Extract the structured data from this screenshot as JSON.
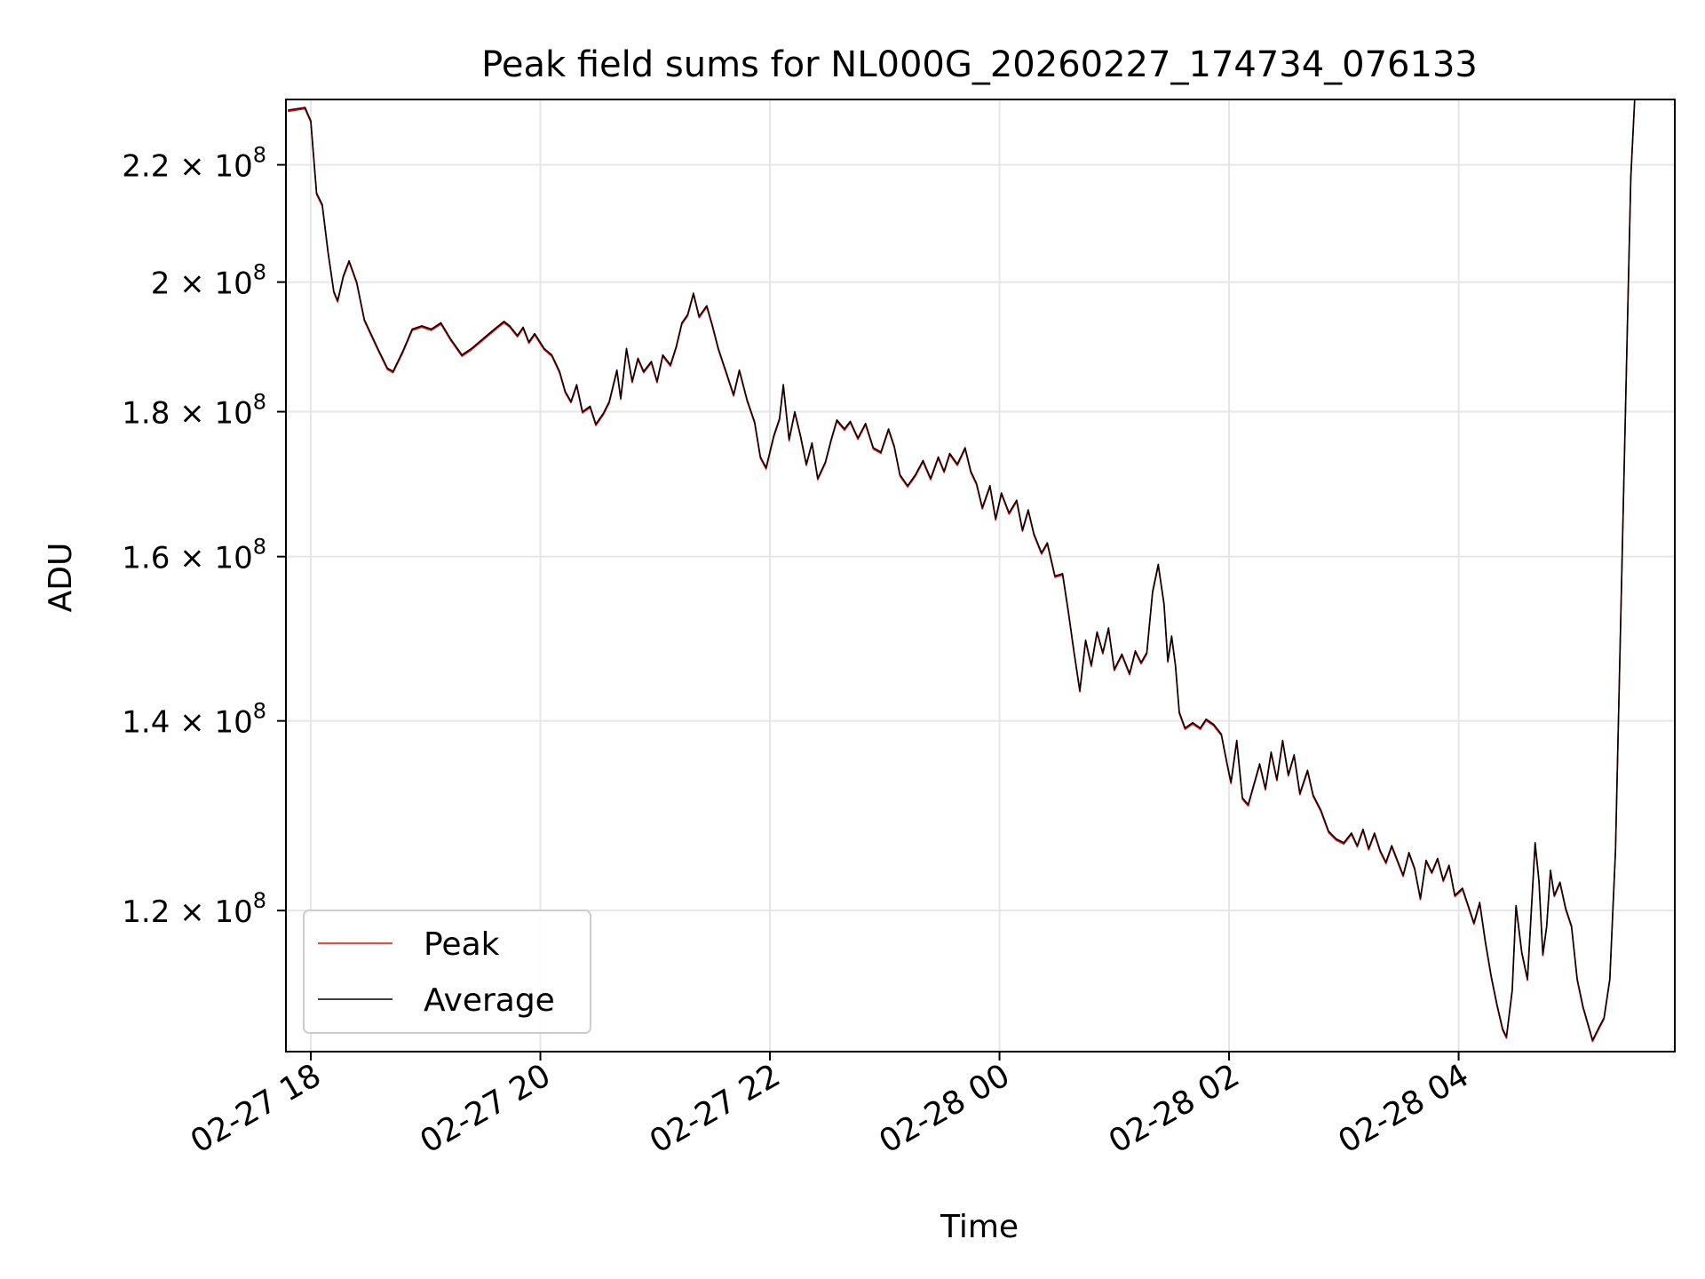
{
  "chart_data": {
    "type": "line",
    "title": "Peak field sums for NL000G_20260227_174734_076133",
    "xlabel": "Time",
    "ylabel": "ADU",
    "yscale": "log",
    "ylim": [
      107000000,
      232000000
    ],
    "xlim": [
      "2026-02-27 17:47",
      "2026-02-28 05:53"
    ],
    "x_ticks": [
      {
        "t": "2026-02-27 18:00",
        "label": "02-27 18"
      },
      {
        "t": "2026-02-27 20:00",
        "label": "02-27 20"
      },
      {
        "t": "2026-02-27 22:00",
        "label": "02-27 22"
      },
      {
        "t": "2026-02-28 00:00",
        "label": "02-28 00"
      },
      {
        "t": "2026-02-28 02:00",
        "label": "02-28 02"
      },
      {
        "t": "2026-02-28 04:00",
        "label": "02-28 04"
      }
    ],
    "y_ticks": [
      {
        "v": 120000000,
        "mantissa": "1.2",
        "exp": "8"
      },
      {
        "v": 140000000,
        "mantissa": "1.4",
        "exp": "8"
      },
      {
        "v": 160000000,
        "mantissa": "1.6",
        "exp": "8"
      },
      {
        "v": 180000000,
        "mantissa": "1.8",
        "exp": "8"
      },
      {
        "v": 200000000,
        "mantissa": "2",
        "exp": "8"
      },
      {
        "v": 220000000,
        "mantissa": "2.2",
        "exp": "8"
      }
    ],
    "grid": true,
    "legend_position": "bottom-left",
    "series": [
      {
        "name": "Peak",
        "color": "#ff0000"
      },
      {
        "name": "Average",
        "color": "#000000"
      }
    ],
    "points": [
      [
        "2026-02-27 17:48",
        230000000
      ],
      [
        "2026-02-27 17:57",
        230500000
      ],
      [
        "2026-02-27 18:00",
        228000000
      ],
      [
        "2026-02-27 18:03",
        215000000
      ],
      [
        "2026-02-27 18:06",
        213000000
      ],
      [
        "2026-02-27 18:09",
        205000000
      ],
      [
        "2026-02-27 18:12",
        198500000
      ],
      [
        "2026-02-27 18:14",
        197000000
      ],
      [
        "2026-02-27 18:17",
        201000000
      ],
      [
        "2026-02-27 18:20",
        203500000
      ],
      [
        "2026-02-27 18:24",
        200000000
      ],
      [
        "2026-02-27 18:28",
        194000000
      ],
      [
        "2026-02-27 18:35",
        189500000
      ],
      [
        "2026-02-27 18:40",
        186500000
      ],
      [
        "2026-02-27 18:43",
        186000000
      ],
      [
        "2026-02-27 18:48",
        189000000
      ],
      [
        "2026-02-27 18:53",
        192500000
      ],
      [
        "2026-02-27 18:58",
        193000000
      ],
      [
        "2026-02-27 19:03",
        192500000
      ],
      [
        "2026-02-27 19:08",
        193500000
      ],
      [
        "2026-02-27 19:13",
        191000000
      ],
      [
        "2026-02-27 19:19",
        188500000
      ],
      [
        "2026-02-27 19:24",
        189500000
      ],
      [
        "2026-02-27 19:30",
        191000000
      ],
      [
        "2026-02-27 19:36",
        192500000
      ],
      [
        "2026-02-27 19:41",
        193700000
      ],
      [
        "2026-02-27 19:44",
        193000000
      ],
      [
        "2026-02-27 19:48",
        191500000
      ],
      [
        "2026-02-27 19:51",
        192800000
      ],
      [
        "2026-02-27 19:54",
        190500000
      ],
      [
        "2026-02-27 19:57",
        191800000
      ],
      [
        "2026-02-27 20:02",
        189500000
      ],
      [
        "2026-02-27 20:06",
        188500000
      ],
      [
        "2026-02-27 20:10",
        186000000
      ],
      [
        "2026-02-27 20:13",
        183000000
      ],
      [
        "2026-02-27 20:16",
        181500000
      ],
      [
        "2026-02-27 20:19",
        184000000
      ],
      [
        "2026-02-27 20:22",
        180000000
      ],
      [
        "2026-02-27 20:26",
        180800000
      ],
      [
        "2026-02-27 20:29",
        178200000
      ],
      [
        "2026-02-27 20:33",
        179800000
      ],
      [
        "2026-02-27 20:36",
        181500000
      ],
      [
        "2026-02-27 20:40",
        186200000
      ],
      [
        "2026-02-27 20:42",
        182000000
      ],
      [
        "2026-02-27 20:45",
        189500000
      ],
      [
        "2026-02-27 20:48",
        184500000
      ],
      [
        "2026-02-27 20:51",
        188000000
      ],
      [
        "2026-02-27 20:54",
        186000000
      ],
      [
        "2026-02-27 20:58",
        187500000
      ],
      [
        "2026-02-27 21:01",
        184500000
      ],
      [
        "2026-02-27 21:04",
        188500000
      ],
      [
        "2026-02-27 21:08",
        187000000
      ],
      [
        "2026-02-27 21:11",
        189800000
      ],
      [
        "2026-02-27 21:14",
        193500000
      ],
      [
        "2026-02-27 21:17",
        194800000
      ],
      [
        "2026-02-27 21:20",
        198200000
      ],
      [
        "2026-02-27 21:23",
        194500000
      ],
      [
        "2026-02-27 21:27",
        196200000
      ],
      [
        "2026-02-27 21:30",
        193000000
      ],
      [
        "2026-02-27 21:33",
        189500000
      ],
      [
        "2026-02-27 21:37",
        186000000
      ],
      [
        "2026-02-27 21:41",
        182500000
      ],
      [
        "2026-02-27 21:44",
        186200000
      ],
      [
        "2026-02-27 21:48",
        181800000
      ],
      [
        "2026-02-27 21:52",
        178500000
      ],
      [
        "2026-02-27 21:55",
        173500000
      ],
      [
        "2026-02-27 21:58",
        172000000
      ],
      [
        "2026-02-27 22:02",
        176500000
      ],
      [
        "2026-02-27 22:05",
        179000000
      ],
      [
        "2026-02-27 22:07",
        184000000
      ],
      [
        "2026-02-27 22:10",
        176000000
      ],
      [
        "2026-02-27 22:13",
        180000000
      ],
      [
        "2026-02-27 22:16",
        176500000
      ],
      [
        "2026-02-27 22:19",
        172500000
      ],
      [
        "2026-02-27 22:22",
        175500000
      ],
      [
        "2026-02-27 22:25",
        170500000
      ],
      [
        "2026-02-27 22:29",
        172800000
      ],
      [
        "2026-02-27 22:32",
        176000000
      ],
      [
        "2026-02-27 22:35",
        178800000
      ],
      [
        "2026-02-27 22:39",
        177500000
      ],
      [
        "2026-02-27 22:42",
        178600000
      ],
      [
        "2026-02-27 22:46",
        176200000
      ],
      [
        "2026-02-27 22:50",
        178300000
      ],
      [
        "2026-02-27 22:54",
        174800000
      ],
      [
        "2026-02-27 22:58",
        174200000
      ],
      [
        "2026-02-27 23:02",
        177500000
      ],
      [
        "2026-02-27 23:05",
        175000000
      ],
      [
        "2026-02-27 23:08",
        171000000
      ],
      [
        "2026-02-27 23:12",
        169500000
      ],
      [
        "2026-02-27 23:16",
        171000000
      ],
      [
        "2026-02-27 23:20",
        173000000
      ],
      [
        "2026-02-27 23:24",
        170500000
      ],
      [
        "2026-02-27 23:28",
        173500000
      ],
      [
        "2026-02-27 23:31",
        171500000
      ],
      [
        "2026-02-27 23:34",
        174000000
      ],
      [
        "2026-02-27 23:38",
        172500000
      ],
      [
        "2026-02-27 23:42",
        174800000
      ],
      [
        "2026-02-27 23:45",
        171500000
      ],
      [
        "2026-02-27 23:48",
        169800000
      ],
      [
        "2026-02-27 23:51",
        166500000
      ],
      [
        "2026-02-27 23:55",
        169500000
      ],
      [
        "2026-02-27 23:58",
        165000000
      ],
      [
        "2026-02-28 00:01",
        168500000
      ],
      [
        "2026-02-28 00:05",
        165800000
      ],
      [
        "2026-02-28 00:09",
        167500000
      ],
      [
        "2026-02-28 00:12",
        163500000
      ],
      [
        "2026-02-28 00:15",
        166200000
      ],
      [
        "2026-02-28 00:18",
        163000000
      ],
      [
        "2026-02-28 00:22",
        160500000
      ],
      [
        "2026-02-28 00:25",
        161800000
      ],
      [
        "2026-02-28 00:29",
        157500000
      ],
      [
        "2026-02-28 00:33",
        157800000
      ],
      [
        "2026-02-28 00:36",
        153000000
      ],
      [
        "2026-02-28 00:39",
        148000000
      ],
      [
        "2026-02-28 00:42",
        143500000
      ],
      [
        "2026-02-28 00:45",
        149500000
      ],
      [
        "2026-02-28 00:48",
        146500000
      ],
      [
        "2026-02-28 00:51",
        150500000
      ],
      [
        "2026-02-28 00:54",
        148000000
      ],
      [
        "2026-02-28 00:57",
        151000000
      ],
      [
        "2026-02-28 01:00",
        146000000
      ],
      [
        "2026-02-28 01:04",
        147800000
      ],
      [
        "2026-02-28 01:08",
        145500000
      ],
      [
        "2026-02-28 01:11",
        148200000
      ],
      [
        "2026-02-28 01:14",
        146800000
      ],
      [
        "2026-02-28 01:17",
        148000000
      ],
      [
        "2026-02-28 01:20",
        155500000
      ],
      [
        "2026-02-28 01:23",
        159000000
      ],
      [
        "2026-02-28 01:26",
        154000000
      ],
      [
        "2026-02-28 01:28",
        147000000
      ],
      [
        "2026-02-28 01:30",
        150000000
      ],
      [
        "2026-02-28 01:32",
        146500000
      ],
      [
        "2026-02-28 01:34",
        141000000
      ],
      [
        "2026-02-28 01:37",
        139200000
      ],
      [
        "2026-02-28 01:41",
        139800000
      ],
      [
        "2026-02-28 01:45",
        139200000
      ],
      [
        "2026-02-28 01:48",
        140200000
      ],
      [
        "2026-02-28 01:52",
        139600000
      ],
      [
        "2026-02-28 01:56",
        138500000
      ],
      [
        "2026-02-28 01:59",
        135200000
      ],
      [
        "2026-02-28 02:01",
        133200000
      ],
      [
        "2026-02-28 02:04",
        137800000
      ],
      [
        "2026-02-28 02:07",
        131500000
      ],
      [
        "2026-02-28 02:10",
        130800000
      ],
      [
        "2026-02-28 02:13",
        133000000
      ],
      [
        "2026-02-28 02:16",
        135200000
      ],
      [
        "2026-02-28 02:19",
        132500000
      ],
      [
        "2026-02-28 02:22",
        136500000
      ],
      [
        "2026-02-28 02:25",
        133500000
      ],
      [
        "2026-02-28 02:28",
        137800000
      ],
      [
        "2026-02-28 02:31",
        134000000
      ],
      [
        "2026-02-28 02:34",
        136200000
      ],
      [
        "2026-02-28 02:37",
        132000000
      ],
      [
        "2026-02-28 02:41",
        134500000
      ],
      [
        "2026-02-28 02:44",
        131800000
      ],
      [
        "2026-02-28 02:48",
        130200000
      ],
      [
        "2026-02-28 02:52",
        128000000
      ],
      [
        "2026-02-28 02:56",
        127200000
      ],
      [
        "2026-02-28 03:00",
        126800000
      ],
      [
        "2026-02-28 03:04",
        127800000
      ],
      [
        "2026-02-28 03:07",
        126500000
      ],
      [
        "2026-02-28 03:10",
        128200000
      ],
      [
        "2026-02-28 03:13",
        126200000
      ],
      [
        "2026-02-28 03:16",
        127800000
      ],
      [
        "2026-02-28 03:19",
        126000000
      ],
      [
        "2026-02-28 03:22",
        124800000
      ],
      [
        "2026-02-28 03:25",
        126500000
      ],
      [
        "2026-02-28 03:28",
        125000000
      ],
      [
        "2026-02-28 03:31",
        123500000
      ],
      [
        "2026-02-28 03:34",
        125800000
      ],
      [
        "2026-02-28 03:37",
        124200000
      ],
      [
        "2026-02-28 03:40",
        121200000
      ],
      [
        "2026-02-28 03:43",
        125000000
      ],
      [
        "2026-02-28 03:46",
        123800000
      ],
      [
        "2026-02-28 03:49",
        125200000
      ],
      [
        "2026-02-28 03:52",
        123000000
      ],
      [
        "2026-02-28 03:55",
        124500000
      ],
      [
        "2026-02-28 03:58",
        121500000
      ],
      [
        "2026-02-28 04:02",
        122200000
      ],
      [
        "2026-02-28 04:05",
        120500000
      ],
      [
        "2026-02-28 04:08",
        118800000
      ],
      [
        "2026-02-28 04:11",
        120800000
      ],
      [
        "2026-02-28 04:14",
        117000000
      ],
      [
        "2026-02-28 04:17",
        113800000
      ],
      [
        "2026-02-28 04:20",
        111200000
      ],
      [
        "2026-02-28 04:23",
        109000000
      ],
      [
        "2026-02-28 04:25",
        108300000
      ],
      [
        "2026-02-28 04:28",
        112500000
      ],
      [
        "2026-02-28 04:30",
        120500000
      ],
      [
        "2026-02-28 04:33",
        116000000
      ],
      [
        "2026-02-28 04:36",
        113500000
      ],
      [
        "2026-02-28 04:38",
        120000000
      ],
      [
        "2026-02-28 04:40",
        126800000
      ],
      [
        "2026-02-28 04:42",
        123000000
      ],
      [
        "2026-02-28 04:44",
        115800000
      ],
      [
        "2026-02-28 04:46",
        118500000
      ],
      [
        "2026-02-28 04:48",
        124000000
      ],
      [
        "2026-02-28 04:50",
        121500000
      ],
      [
        "2026-02-28 04:53",
        122800000
      ],
      [
        "2026-02-28 04:56",
        120200000
      ],
      [
        "2026-02-28 04:59",
        118500000
      ],
      [
        "2026-02-28 05:02",
        113500000
      ],
      [
        "2026-02-28 05:05",
        111000000
      ],
      [
        "2026-02-28 05:08",
        109200000
      ],
      [
        "2026-02-28 05:10",
        108000000
      ],
      [
        "2026-02-28 05:13",
        109000000
      ],
      [
        "2026-02-28 05:16",
        110000000
      ],
      [
        "2026-02-28 05:19",
        113500000
      ],
      [
        "2026-02-28 05:22",
        126000000
      ],
      [
        "2026-02-28 05:25",
        155000000
      ],
      [
        "2026-02-28 05:28",
        190000000
      ],
      [
        "2026-02-28 05:30",
        218000000
      ],
      [
        "2026-02-28 05:32",
        232000000
      ]
    ]
  }
}
